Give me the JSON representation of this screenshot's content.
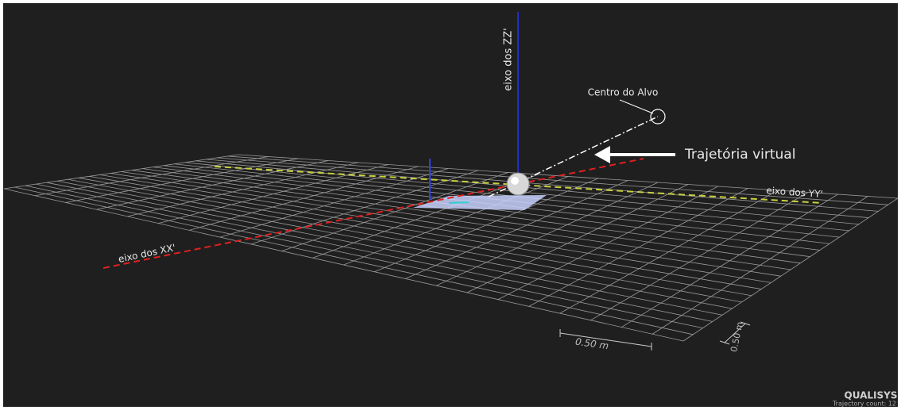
{
  "view": {
    "z_axis_label": "eixo dos ZZ'",
    "target_label": "Centro do Alvo",
    "trajectory_label": "Trajetória virtual",
    "y_axis_label": "eixo dos YY'",
    "x_axis_label": "eixo dos XX'",
    "scale_x_label": "0.50 m",
    "scale_y_label": "0.50 m",
    "brand": "QUALISYS",
    "status": "Trajectory count: 12"
  }
}
